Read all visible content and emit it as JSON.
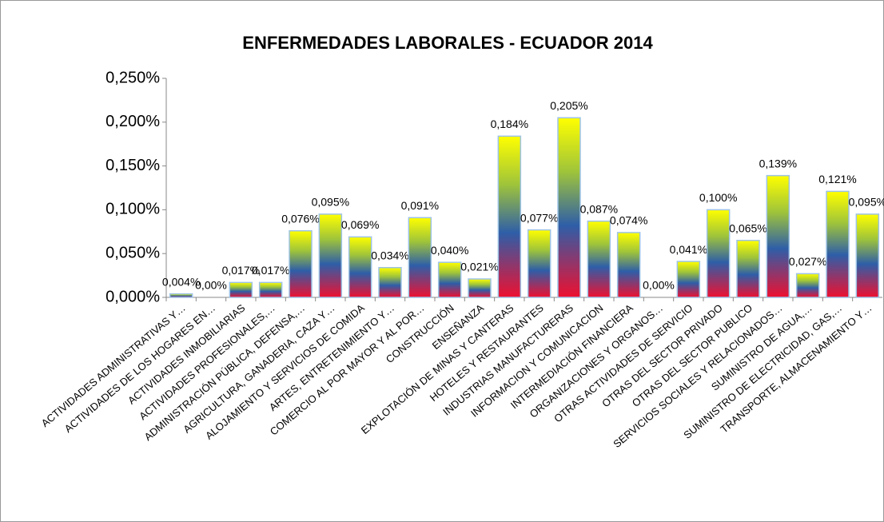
{
  "chart_data": {
    "type": "bar",
    "title": "ENFERMEDADES LABORALES - ECUADOR 2014",
    "categories": [
      "ACTIVIDADES ADMINISTRATIVAS Y…",
      "ACTIVIDADES DE LOS HOGARES EN…",
      "ACTIVIDADES INMOBILIARIAS",
      "ACTIVIDADES PROFESIONALES,…",
      "ADMINISTRACIÓN PÚBLICA, DEFENSA,…",
      "AGRICULTURA, GANADERIA, CAZA Y…",
      "ALOJAMIENTO Y SERVICIOS DE COMIDA",
      "ARTES, ENTRETENIMIENTO Y…",
      "COMERCIO AL POR MAYOR Y AL POR…",
      "CONSTRUCCIÓN",
      "ENSEÑANZA",
      "EXPLOTACIÓN DE MINAS Y CANTERAS",
      "HOTELES Y RESTAURANTES",
      "INDUSTRIAS MANUFACTURERAS",
      "INFORMACION Y COMUNICACION",
      "INTERMEDIACIÓN FINANCIERA",
      "ORGANIZACIONES Y ORGANOS…",
      "OTRAS ACTIVIDADES DE SERVICIO",
      "OTRAS DEL SECTOR PRIVADO",
      "OTRAS DEL SECTOR PUBLICO",
      "SERVICIOS SOCIALES Y  RELACIONADOS…",
      "SUMINISTRO DE AGUA,…",
      "SUMINISTRO DE ELECTRICIDAD, GAS,…",
      "TRANSPORTE, ALMACENAMIENTO Y…"
    ],
    "values": [
      0.004,
      0,
      0.017,
      0.017,
      0.076,
      0.095,
      0.069,
      0.034,
      0.091,
      0.04,
      0.021,
      0.184,
      0.077,
      0.205,
      0.087,
      0.074,
      0,
      0.041,
      0.1,
      0.065,
      0.139,
      0.027,
      0.121,
      0.095
    ],
    "value_labels": [
      "0,004%",
      "0,00%",
      "0,017%",
      "0,017%",
      "0,076%",
      "0,095%",
      "0,069%",
      "0,034%",
      "0,091%",
      "0,040%",
      "0,021%",
      "0,184%",
      "0,077%",
      "0,205%",
      "0,087%",
      "0,074%",
      "0,00%",
      "0,041%",
      "0,100%",
      "0,065%",
      "0,139%",
      "0,027%",
      "0,121%",
      "0,095%"
    ],
    "gradient_colors": [
      "#ffff00",
      "#2e5ea8",
      "#ee1030"
    ],
    "ylim": [
      0,
      0.25
    ],
    "yticks": [
      {
        "value": 0,
        "label": "0,000%"
      },
      {
        "value": 0.05,
        "label": "0,050%"
      },
      {
        "value": 0.1,
        "label": "0,100%"
      },
      {
        "value": 0.15,
        "label": "0,150%"
      },
      {
        "value": 0.2,
        "label": "0,200%"
      },
      {
        "value": 0.25,
        "label": "0,250%"
      }
    ],
    "grid": false
  }
}
